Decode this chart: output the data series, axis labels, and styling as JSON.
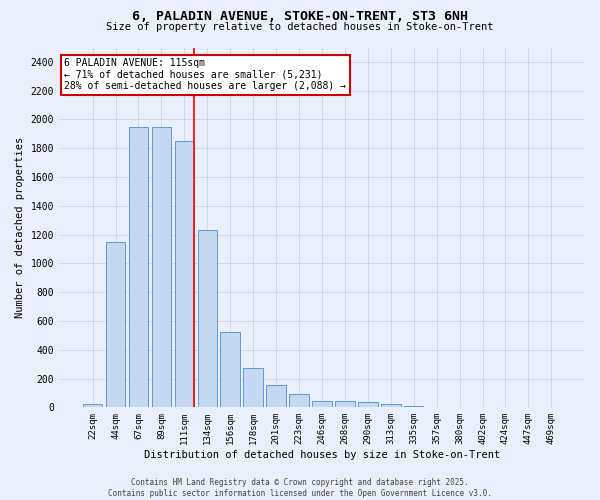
{
  "title_line1": "6, PALADIN AVENUE, STOKE-ON-TRENT, ST3 6NH",
  "title_line2": "Size of property relative to detached houses in Stoke-on-Trent",
  "xlabel": "Distribution of detached houses by size in Stoke-on-Trent",
  "ylabel": "Number of detached properties",
  "categories": [
    "22sqm",
    "44sqm",
    "67sqm",
    "89sqm",
    "111sqm",
    "134sqm",
    "156sqm",
    "178sqm",
    "201sqm",
    "223sqm",
    "246sqm",
    "268sqm",
    "290sqm",
    "313sqm",
    "335sqm",
    "357sqm",
    "380sqm",
    "402sqm",
    "424sqm",
    "447sqm",
    "469sqm"
  ],
  "values": [
    25,
    1150,
    1950,
    1950,
    1850,
    1230,
    520,
    275,
    155,
    90,
    45,
    45,
    35,
    20,
    10,
    5,
    5,
    3,
    3,
    2,
    2
  ],
  "bar_color": "#c5d8f0",
  "bar_edge_color": "#5b9bd5",
  "grid_color": "#d0d8e8",
  "background_color": "#eaf0fb",
  "red_line_index": 4,
  "annotation_text": "6 PALADIN AVENUE: 115sqm\n← 71% of detached houses are smaller (5,231)\n28% of semi-detached houses are larger (2,088) →",
  "annotation_box_color": "#ffffff",
  "annotation_box_edge": "#cc0000",
  "ylim": [
    0,
    2500
  ],
  "yticks": [
    0,
    200,
    400,
    600,
    800,
    1000,
    1200,
    1400,
    1600,
    1800,
    2000,
    2200,
    2400
  ],
  "footer_line1": "Contains HM Land Registry data © Crown copyright and database right 2025.",
  "footer_line2": "Contains public sector information licensed under the Open Government Licence v3.0."
}
